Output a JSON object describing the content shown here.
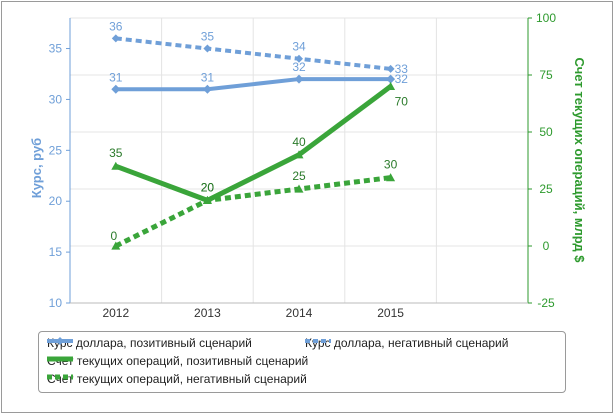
{
  "chart_data": {
    "type": "line",
    "categories": [
      "2012",
      "2013",
      "2014",
      "2015"
    ],
    "y_left": {
      "label": "Курс, руб",
      "min": 10,
      "max": 38,
      "ticks": [
        10,
        15,
        20,
        25,
        30,
        35
      ]
    },
    "y_right": {
      "label": "Счет текущих операций, млрд $",
      "min": -25,
      "max": 100,
      "ticks": [
        -25,
        0,
        25,
        50,
        75,
        100
      ]
    },
    "grid": true,
    "legend_position": "bottom",
    "series": [
      {
        "name": "Курс доллара, позитивный сценарий",
        "axis": "left",
        "style": "solid",
        "color": "#6f9fd8",
        "values": [
          31,
          31,
          32,
          32
        ],
        "labels": [
          "31",
          "31",
          "32",
          "32"
        ]
      },
      {
        "name": "Курс доллара, негативный сценарий",
        "axis": "left",
        "style": "dotted",
        "color": "#6f9fd8",
        "values": [
          36,
          35,
          34,
          33
        ],
        "labels": [
          "36",
          "35",
          "34",
          "33"
        ]
      },
      {
        "name": "Счет текущих операций, позитивный сценарий",
        "axis": "right",
        "style": "solid",
        "color": "#3aa53a",
        "values": [
          35,
          20,
          40,
          70
        ],
        "labels": [
          "35",
          "20",
          "40",
          "70"
        ]
      },
      {
        "name": "Счет текущих операций, негативный сценарий",
        "axis": "right",
        "style": "dotted",
        "color": "#3aa53a",
        "values": [
          0,
          20,
          25,
          30
        ],
        "labels": [
          "0",
          "20",
          "25",
          "30"
        ]
      }
    ]
  }
}
